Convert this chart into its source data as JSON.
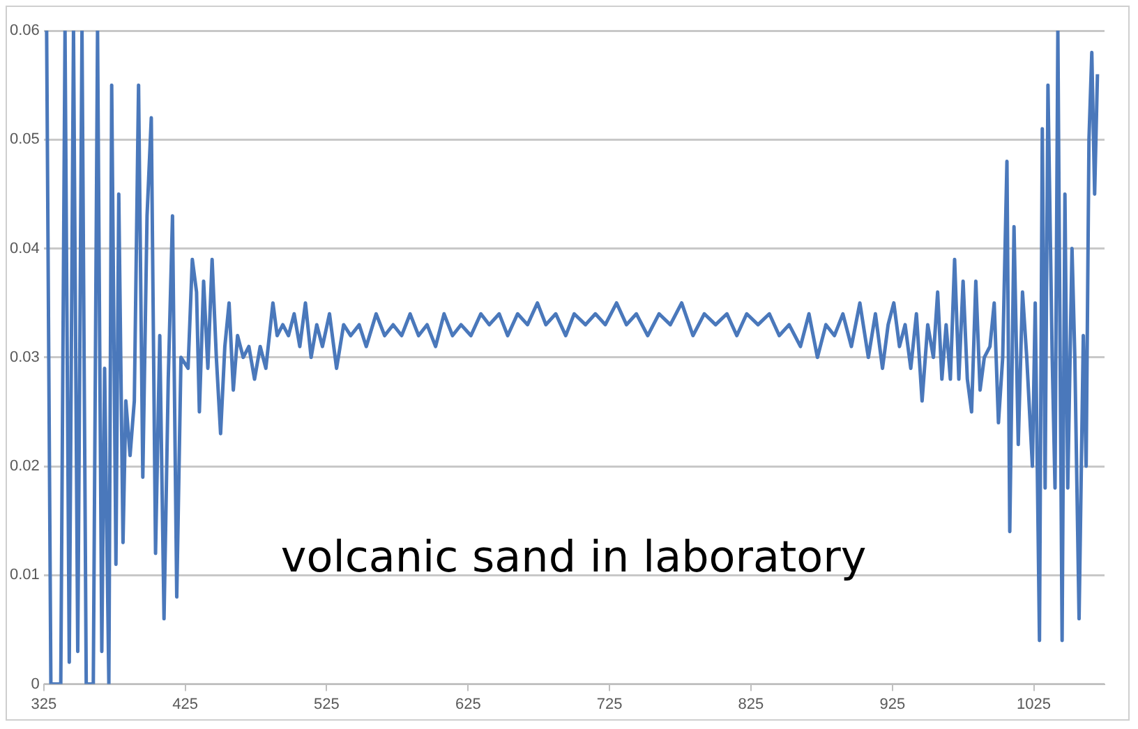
{
  "chart_data": {
    "type": "line",
    "annotations": [
      "volcanic sand in laboratory"
    ],
    "color": "#4a78bb",
    "grid": "y",
    "legend": false,
    "marker": "none",
    "line_style": "solid",
    "xlim": [
      325,
      1075
    ],
    "xticks": [
      325,
      425,
      525,
      625,
      725,
      825,
      925,
      1025
    ],
    "ylim": [
      0,
      0.06
    ],
    "yticks": [
      0,
      0.01,
      0.02,
      0.03,
      0.04,
      0.05,
      0.06
    ],
    "x": [
      327,
      330,
      337,
      340,
      343,
      346,
      349,
      352,
      355,
      360,
      363,
      366,
      368,
      371,
      373,
      376,
      378,
      381,
      383,
      386,
      389,
      392,
      395,
      398,
      401,
      404,
      407,
      410,
      413,
      416,
      419,
      422,
      427,
      430,
      433,
      435,
      438,
      441,
      444,
      447,
      450,
      453,
      456,
      459,
      462,
      466,
      470,
      474,
      478,
      482,
      487,
      490,
      494,
      498,
      502,
      506,
      510,
      514,
      518,
      522,
      527,
      532,
      537,
      542,
      548,
      553,
      560,
      566,
      572,
      578,
      584,
      590,
      596,
      602,
      608,
      614,
      620,
      627,
      634,
      640,
      647,
      653,
      660,
      667,
      674,
      680,
      687,
      694,
      700,
      708,
      715,
      722,
      730,
      737,
      744,
      752,
      760,
      768,
      776,
      784,
      792,
      800,
      808,
      815,
      822,
      830,
      838,
      845,
      852,
      860,
      866,
      872,
      878,
      884,
      890,
      896,
      902,
      908,
      913,
      918,
      922,
      926,
      930,
      934,
      938,
      942,
      946,
      950,
      954,
      957,
      960,
      963,
      966,
      969,
      972,
      975,
      978,
      981,
      984,
      987,
      990,
      994,
      997,
      1000,
      1003,
      1006,
      1008,
      1011,
      1014,
      1017,
      1020,
      1024,
      1026,
      1029,
      1031,
      1033,
      1035,
      1038,
      1040,
      1042,
      1045,
      1047,
      1049,
      1052,
      1054,
      1057,
      1060,
      1062,
      1064,
      1066,
      1068,
      1070
    ],
    "values": [
      0.06,
      0,
      0,
      0.06,
      0.002,
      0.06,
      0.003,
      0.06,
      0,
      0,
      0.06,
      0.003,
      0.029,
      0,
      0.055,
      0.011,
      0.045,
      0.013,
      0.026,
      0.021,
      0.026,
      0.055,
      0.019,
      0.043,
      0.052,
      0.012,
      0.032,
      0.006,
      0.028,
      0.043,
      0.008,
      0.03,
      0.029,
      0.039,
      0.036,
      0.025,
      0.037,
      0.029,
      0.039,
      0.03,
      0.023,
      0.031,
      0.035,
      0.027,
      0.032,
      0.03,
      0.031,
      0.028,
      0.031,
      0.029,
      0.035,
      0.032,
      0.033,
      0.032,
      0.034,
      0.031,
      0.035,
      0.03,
      0.033,
      0.031,
      0.034,
      0.029,
      0.033,
      0.032,
      0.033,
      0.031,
      0.034,
      0.032,
      0.033,
      0.032,
      0.034,
      0.032,
      0.033,
      0.031,
      0.034,
      0.032,
      0.033,
      0.032,
      0.034,
      0.033,
      0.034,
      0.032,
      0.034,
      0.033,
      0.035,
      0.033,
      0.034,
      0.032,
      0.034,
      0.033,
      0.034,
      0.033,
      0.035,
      0.033,
      0.034,
      0.032,
      0.034,
      0.033,
      0.035,
      0.032,
      0.034,
      0.033,
      0.034,
      0.032,
      0.034,
      0.033,
      0.034,
      0.032,
      0.033,
      0.031,
      0.034,
      0.03,
      0.033,
      0.032,
      0.034,
      0.031,
      0.035,
      0.03,
      0.034,
      0.029,
      0.033,
      0.035,
      0.031,
      0.033,
      0.029,
      0.034,
      0.026,
      0.033,
      0.03,
      0.036,
      0.028,
      0.033,
      0.028,
      0.039,
      0.028,
      0.037,
      0.028,
      0.025,
      0.037,
      0.027,
      0.03,
      0.031,
      0.035,
      0.024,
      0.03,
      0.048,
      0.014,
      0.042,
      0.022,
      0.036,
      0.03,
      0.02,
      0.035,
      0.004,
      0.051,
      0.018,
      0.055,
      0.03,
      0.018,
      0.06,
      0.004,
      0.045,
      0.018,
      0.04,
      0.03,
      0.006,
      0.032,
      0.02,
      0.05,
      0.058,
      0.045,
      0.056
    ]
  }
}
